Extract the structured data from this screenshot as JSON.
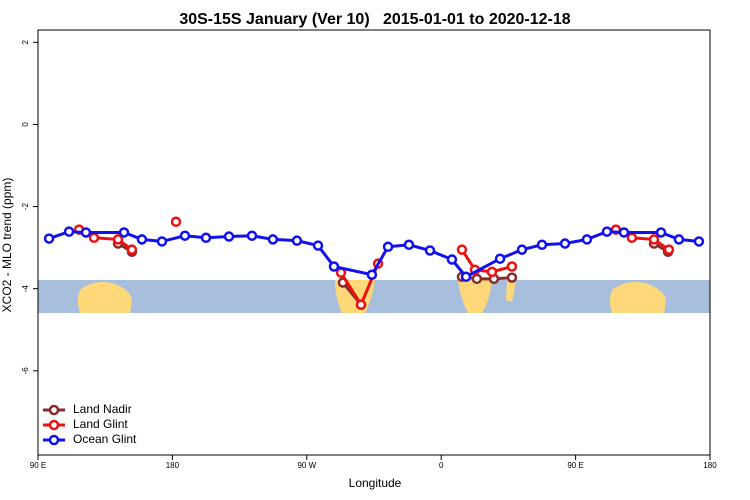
{
  "chart_data": {
    "type": "line",
    "title": "30S-15S January (Ver 10)   2015-01-01 to 2020-12-18",
    "xlabel": "Longitude",
    "ylabel": "XCO2 - MLO trend (ppm)",
    "xlim": [
      90,
      540
    ],
    "xticks": [
      {
        "value": 90,
        "label": "90 E"
      },
      180,
      {
        "value": 270,
        "label": "90 W"
      },
      {
        "value": 360,
        "label": "0"
      },
      {
        "value": 450,
        "label": "90 E"
      },
      {
        "value": 540,
        "label": "180"
      }
    ],
    "ylim": [
      -8.05,
      2.3
    ],
    "yticks": [
      2,
      0,
      -2,
      -4,
      -6
    ],
    "legend": "bottom-left",
    "series": [
      {
        "name": "Land Nadir",
        "color": "#8b2a2a",
        "x": [
          143.6,
          152.9,
          null,
          294.2,
          306.3,
          null,
          373.9,
          383.9,
          395.3,
          407.4,
          null,
          502.5,
          511.9
        ],
        "values": [
          -2.9,
          -3.1,
          null,
          -3.85,
          -4.39,
          null,
          -3.71,
          -3.76,
          -3.76,
          -3.73,
          null,
          -2.9,
          -3.1
        ]
      },
      {
        "name": "Land Glint",
        "color": "#ee1111",
        "x": [
          117.5,
          127.5,
          143.6,
          152.9,
          null,
          182.4,
          null,
          292.9,
          306.3,
          317.7,
          null,
          373.9,
          382.6,
          394,
          407.4,
          null,
          477,
          487.7,
          502.5,
          512.5
        ],
        "values": [
          -2.56,
          -2.76,
          -2.8,
          -3.05,
          null,
          -2.37,
          null,
          -3.61,
          -4.39,
          -3.39,
          null,
          -3.05,
          -3.54,
          -3.59,
          -3.46,
          null,
          -2.56,
          -2.76,
          -2.8,
          -3.05
        ]
      },
      {
        "name": "Ocean Glint",
        "color": "#1111ee",
        "x": [
          97.4,
          110.8,
          122.1,
          147.6,
          159.6,
          173,
          188.4,
          202.5,
          217.9,
          233.3,
          247.3,
          263.4,
          277.5,
          288.2,
          313.6,
          324.4,
          338.4,
          352.5,
          367.2,
          376.6,
          399.4,
          414.1,
          427.5,
          442.9,
          457.6,
          471,
          482.4,
          507.2,
          519.2,
          532.6
        ],
        "values": [
          -2.78,
          -2.61,
          -2.63,
          -2.63,
          -2.8,
          -2.85,
          -2.71,
          -2.76,
          -2.73,
          -2.71,
          -2.8,
          -2.83,
          -2.95,
          -3.46,
          -3.66,
          -2.98,
          -2.93,
          -3.07,
          -3.29,
          -3.71,
          -3.27,
          -3.05,
          -2.93,
          -2.9,
          -2.8,
          -2.61,
          -2.63,
          -2.63,
          -2.8,
          -2.85
        ]
      }
    ]
  }
}
